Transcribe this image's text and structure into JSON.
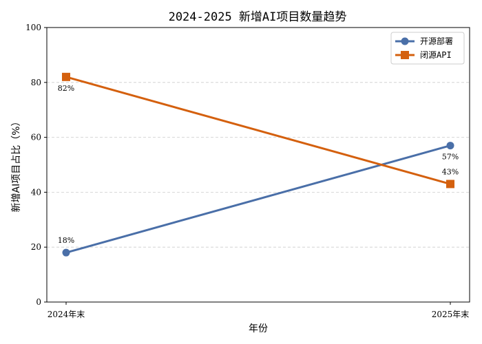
{
  "chart_data": {
    "type": "line",
    "title": "2024-2025 新增AI项目数量趋势",
    "xlabel": "年份",
    "ylabel": "新增AI项目占比（%）",
    "categories": [
      "2024年末",
      "2025年末"
    ],
    "ylim": [
      0,
      100
    ],
    "yticks": [
      0,
      20,
      40,
      60,
      80,
      100
    ],
    "grid": "y-dashed",
    "legend_position": "top-right",
    "series": [
      {
        "name": "开源部署",
        "values": [
          18,
          57
        ],
        "labels": [
          "18%",
          "57%"
        ],
        "color": "#4a6fa8",
        "marker": "circle"
      },
      {
        "name": "闭源API",
        "values": [
          82,
          43
        ],
        "labels": [
          "82%",
          "43%"
        ],
        "color": "#d4600e",
        "marker": "square"
      }
    ]
  }
}
